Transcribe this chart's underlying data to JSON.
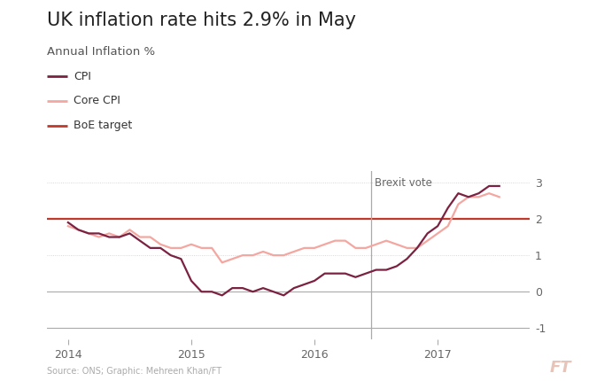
{
  "title": "UK inflation rate hits 2.9% in May",
  "subtitle": "Annual Inflation %",
  "source": "Source: ONS; Graphic: Mehreen Khan/FT",
  "ft_logo": "FT",
  "background_color": "#ffffff",
  "ylim": [
    -1.3,
    3.3
  ],
  "yticks": [
    -1,
    0,
    1,
    2,
    3
  ],
  "xlim_left": 2013.83,
  "xlim_right": 2017.75,
  "brexit_vote_x": 2016.458,
  "brexit_label": "Brexit vote",
  "boe_target": 2.0,
  "cpi_color": "#7b2142",
  "core_cpi_color": "#f4a7a0",
  "boe_color": "#c0392b",
  "grid_color": "#cccccc",
  "title_fontsize": 15,
  "subtitle_fontsize": 9.5,
  "tick_fontsize": 9,
  "legend_fontsize": 9,
  "cpi_dates": [
    2014.0,
    2014.083,
    2014.167,
    2014.25,
    2014.333,
    2014.417,
    2014.5,
    2014.583,
    2014.667,
    2014.75,
    2014.833,
    2014.917,
    2015.0,
    2015.083,
    2015.167,
    2015.25,
    2015.333,
    2015.417,
    2015.5,
    2015.583,
    2015.667,
    2015.75,
    2015.833,
    2015.917,
    2016.0,
    2016.083,
    2016.167,
    2016.25,
    2016.333,
    2016.417,
    2016.5,
    2016.583,
    2016.667,
    2016.75,
    2016.833,
    2016.917,
    2017.0,
    2017.083,
    2017.167,
    2017.25,
    2017.333,
    2017.417,
    2017.5
  ],
  "cpi_values": [
    1.9,
    1.7,
    1.6,
    1.6,
    1.5,
    1.5,
    1.6,
    1.4,
    1.2,
    1.2,
    1.0,
    0.9,
    0.3,
    0.0,
    0.0,
    -0.1,
    0.1,
    0.1,
    0.0,
    0.1,
    0.0,
    -0.1,
    0.1,
    0.2,
    0.3,
    0.5,
    0.5,
    0.5,
    0.4,
    0.5,
    0.6,
    0.6,
    0.7,
    0.9,
    1.2,
    1.6,
    1.8,
    2.3,
    2.7,
    2.6,
    2.7,
    2.9,
    2.9
  ],
  "core_cpi_dates": [
    2014.0,
    2014.083,
    2014.167,
    2014.25,
    2014.333,
    2014.417,
    2014.5,
    2014.583,
    2014.667,
    2014.75,
    2014.833,
    2014.917,
    2015.0,
    2015.083,
    2015.167,
    2015.25,
    2015.333,
    2015.417,
    2015.5,
    2015.583,
    2015.667,
    2015.75,
    2015.833,
    2015.917,
    2016.0,
    2016.083,
    2016.167,
    2016.25,
    2016.333,
    2016.417,
    2016.5,
    2016.583,
    2016.667,
    2016.75,
    2016.833,
    2016.917,
    2017.0,
    2017.083,
    2017.167,
    2017.25,
    2017.333,
    2017.417,
    2017.5
  ],
  "core_cpi_values": [
    1.8,
    1.7,
    1.6,
    1.5,
    1.6,
    1.5,
    1.7,
    1.5,
    1.5,
    1.3,
    1.2,
    1.2,
    1.3,
    1.2,
    1.2,
    0.8,
    0.9,
    1.0,
    1.0,
    1.1,
    1.0,
    1.0,
    1.1,
    1.2,
    1.2,
    1.3,
    1.4,
    1.4,
    1.2,
    1.2,
    1.3,
    1.4,
    1.3,
    1.2,
    1.2,
    1.4,
    1.6,
    1.8,
    2.4,
    2.6,
    2.6,
    2.7,
    2.6
  ]
}
